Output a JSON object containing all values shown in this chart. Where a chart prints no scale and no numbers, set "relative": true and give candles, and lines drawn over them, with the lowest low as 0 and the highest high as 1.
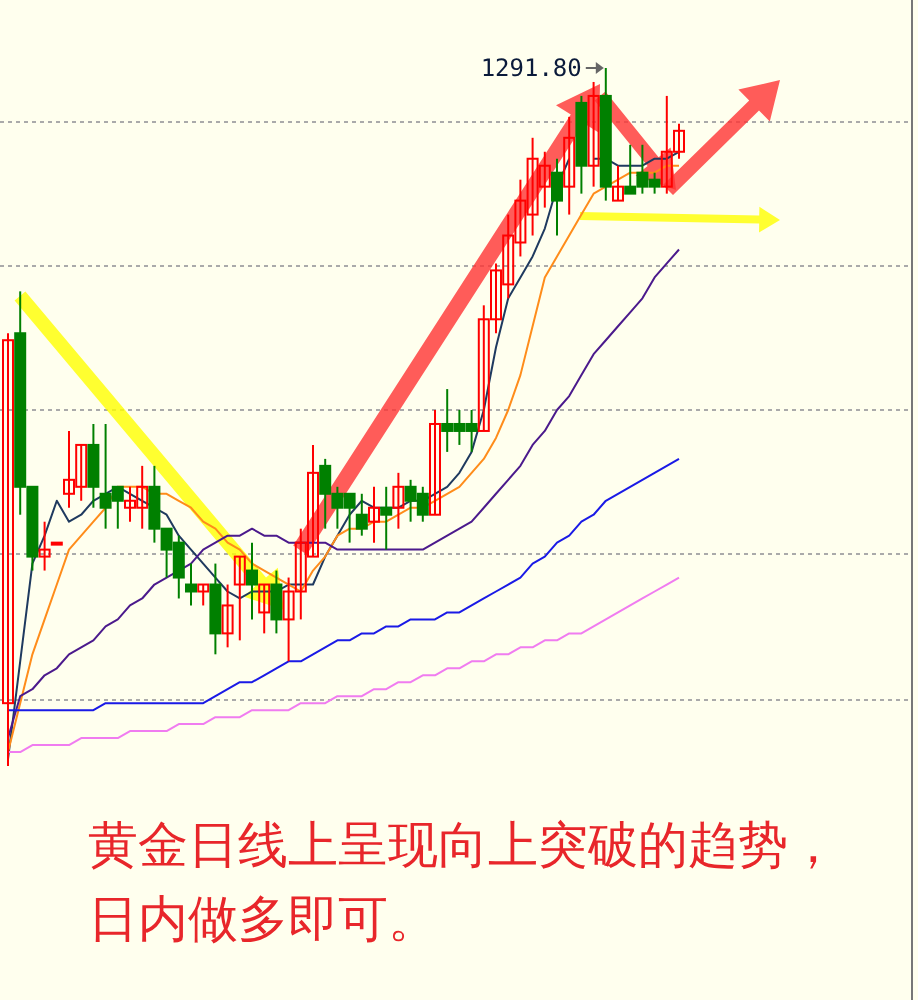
{
  "chart_data": {
    "type": "candlestick",
    "relative": true,
    "grid": "y",
    "categories": [
      null,
      null,
      null,
      null,
      null,
      null,
      null,
      null,
      null,
      null,
      null,
      null,
      null,
      null,
      null,
      null,
      null,
      null,
      null,
      null,
      null,
      null,
      null,
      null,
      null,
      null,
      null,
      null,
      null,
      null,
      null,
      null,
      null,
      null,
      null,
      null,
      null,
      null,
      null,
      null,
      null,
      null,
      null,
      null,
      null,
      null,
      null,
      null,
      null,
      null,
      null,
      null,
      null,
      null,
      null,
      null
    ],
    "ohlc": [
      [
        0.09,
        0.62,
        0,
        0.61
      ],
      [
        0.62,
        0.68,
        0.36,
        0.4
      ],
      [
        0.4,
        0.4,
        0.28,
        0.3
      ],
      [
        0.3,
        0.35,
        0.28,
        0.31
      ],
      [
        0.32,
        0.32,
        0.32,
        0.32
      ],
      [
        0.39,
        0.48,
        0.37,
        0.41
      ],
      [
        0.4,
        0.46,
        0.38,
        0.46
      ],
      [
        0.46,
        0.49,
        0.37,
        0.4
      ],
      [
        0.39,
        0.49,
        0.34,
        0.37
      ],
      [
        0.4,
        0.4,
        0.34,
        0.38
      ],
      [
        0.37,
        0.4,
        0.35,
        0.38
      ],
      [
        0.37,
        0.43,
        0.34,
        0.4
      ],
      [
        0.4,
        0.43,
        0.32,
        0.34
      ],
      [
        0.34,
        0.34,
        0.27,
        0.31
      ],
      [
        0.32,
        0.33,
        0.24,
        0.27
      ],
      [
        0.26,
        0.29,
        0.23,
        0.25
      ],
      [
        0.25,
        0.26,
        0.23,
        0.26
      ],
      [
        0.26,
        0.29,
        0.16,
        0.19
      ],
      [
        0.19,
        0.26,
        0.17,
        0.23
      ],
      [
        0.26,
        0.3,
        0.18,
        0.3
      ],
      [
        0.28,
        0.32,
        0.21,
        0.26
      ],
      [
        0.22,
        0.26,
        0.19,
        0.26
      ],
      [
        0.26,
        0.28,
        0.19,
        0.21
      ],
      [
        0.21,
        0.27,
        0.15,
        0.25
      ],
      [
        0.25,
        0.34,
        0.21,
        0.32
      ],
      [
        0.3,
        0.46,
        0.3,
        0.42
      ],
      [
        0.43,
        0.44,
        0.34,
        0.39
      ],
      [
        0.39,
        0.4,
        0.34,
        0.37
      ],
      [
        0.39,
        0.39,
        0.32,
        0.37
      ],
      [
        0.36,
        0.39,
        0.33,
        0.34
      ],
      [
        0.35,
        0.4,
        0.32,
        0.37
      ],
      [
        0.37,
        0.4,
        0.31,
        0.36
      ],
      [
        0.37,
        0.42,
        0.34,
        0.4
      ],
      [
        0.4,
        0.41,
        0.35,
        0.38
      ],
      [
        0.39,
        0.4,
        0.35,
        0.36
      ],
      [
        0.36,
        0.51,
        0.36,
        0.49
      ],
      [
        0.49,
        0.54,
        0.45,
        0.48
      ],
      [
        0.49,
        0.51,
        0.46,
        0.48
      ],
      [
        0.49,
        0.51,
        0.45,
        0.48
      ],
      [
        0.48,
        0.66,
        0.48,
        0.64
      ],
      [
        0.64,
        0.72,
        0.62,
        0.71
      ],
      [
        0.69,
        0.79,
        0.67,
        0.76
      ],
      [
        0.75,
        0.84,
        0.73,
        0.81
      ],
      [
        0.79,
        0.9,
        0.76,
        0.87
      ],
      [
        0.83,
        0.88,
        0.8,
        0.86
      ],
      [
        0.85,
        0.87,
        0.76,
        0.81
      ],
      [
        0.83,
        0.93,
        0.79,
        0.9
      ],
      [
        0.95,
        0.96,
        0.82,
        0.86
      ],
      [
        0.86,
        0.98,
        0.83,
        0.96
      ],
      [
        0.96,
        1,
        0.81,
        0.83
      ],
      [
        0.81,
        0.86,
        0.81,
        0.83
      ],
      [
        0.83,
        0.89,
        0.82,
        0.82
      ],
      [
        0.85,
        0.89,
        0.82,
        0.83
      ],
      [
        0.84,
        0.85,
        0.82,
        0.83
      ],
      [
        0.83,
        0.96,
        0.82,
        0.88
      ],
      [
        0.88,
        0.92,
        0.87,
        0.91
      ]
    ],
    "series": [
      {
        "type": "line",
        "color": "#1f3a5f",
        "values": [
          0.01,
          0.15,
          0.29,
          0.33,
          0.38,
          0.35,
          0.36,
          0.38,
          0.39,
          0.4,
          0.39,
          0.38,
          0.37,
          0.36,
          0.33,
          0.31,
          0.29,
          0.27,
          0.25,
          0.24,
          0.25,
          0.25,
          0.25,
          0.26,
          0.26,
          0.26,
          0.3,
          0.33,
          0.36,
          0.38,
          0.37,
          0.37,
          0.37,
          0.38,
          0.38,
          0.39,
          0.4,
          0.42,
          0.45,
          0.51,
          0.6,
          0.67,
          0.7,
          0.73,
          0.77,
          0.83,
          0.87,
          null,
          0.87,
          0.87,
          0.86,
          0.86,
          0.86,
          0.87,
          0.87,
          0.88
        ]
      },
      {
        "type": "line",
        "color": "#ff8c1a",
        "values": [
          0.02,
          0.09,
          0.16,
          0.21,
          0.26,
          0.31,
          0.33,
          0.35,
          0.37,
          0.4,
          0.4,
          0.4,
          0.39,
          0.39,
          0.38,
          0.37,
          0.35,
          0.34,
          0.32,
          0.31,
          0.29,
          0.28,
          0.27,
          0.26,
          0.25,
          0.28,
          0.3,
          0.33,
          0.34,
          0.34,
          0.35,
          0.35,
          0.36,
          0.37,
          0.37,
          0.38,
          0.39,
          0.4,
          0.42,
          0.44,
          0.47,
          0.51,
          0.56,
          0.63,
          0.7,
          0.73,
          0.76,
          0.79,
          0.82,
          0.83,
          0.84,
          0.85,
          0.85,
          0.85,
          0.86,
          0.86
        ]
      },
      {
        "type": "line",
        "color": "#4b1a8c",
        "values": [
          0.04,
          0.1,
          0.11,
          0.13,
          0.14,
          0.16,
          0.17,
          0.18,
          0.2,
          0.21,
          0.23,
          0.24,
          0.26,
          0.27,
          0.28,
          0.29,
          0.31,
          0.32,
          0.33,
          0.33,
          0.34,
          0.33,
          0.33,
          0.32,
          0.32,
          0.32,
          0.32,
          0.31,
          0.31,
          0.31,
          0.31,
          0.31,
          0.31,
          0.31,
          0.31,
          0.32,
          0.33,
          0.34,
          0.35,
          0.37,
          0.39,
          0.41,
          0.43,
          0.46,
          0.48,
          0.51,
          0.53,
          0.56,
          0.59,
          0.61,
          0.63,
          0.65,
          0.67,
          0.7,
          0.72,
          0.74
        ]
      },
      {
        "type": "line",
        "color": "#1a1ae6",
        "values": [
          0.08,
          0.08,
          0.08,
          0.08,
          0.08,
          0.08,
          0.08,
          0.08,
          0.09,
          0.09,
          0.09,
          0.09,
          0.09,
          0.09,
          0.09,
          0.09,
          0.09,
          0.1,
          0.11,
          0.12,
          0.12,
          0.13,
          0.14,
          0.15,
          0.15,
          0.16,
          0.17,
          0.18,
          0.18,
          0.19,
          0.19,
          0.2,
          0.2,
          0.21,
          0.21,
          0.21,
          0.22,
          0.22,
          0.23,
          0.24,
          0.25,
          0.26,
          0.27,
          0.29,
          0.3,
          0.32,
          0.33,
          0.35,
          0.36,
          0.38,
          0.39,
          0.4,
          0.41,
          0.42,
          0.43,
          0.44
        ]
      },
      {
        "type": "line",
        "color": "#f07cf0",
        "values": [
          0.02,
          0.02,
          0.03,
          0.03,
          0.03,
          0.03,
          0.04,
          0.04,
          0.04,
          0.04,
          0.05,
          0.05,
          0.05,
          0.05,
          0.06,
          0.06,
          0.06,
          0.07,
          0.07,
          0.07,
          0.08,
          0.08,
          0.08,
          0.08,
          0.09,
          0.09,
          0.09,
          0.1,
          0.1,
          0.1,
          0.11,
          0.11,
          0.12,
          0.12,
          0.13,
          0.13,
          0.14,
          0.14,
          0.15,
          0.15,
          0.16,
          0.16,
          0.17,
          0.17,
          0.18,
          0.18,
          0.19,
          0.19,
          0.2,
          0.21,
          0.22,
          0.23,
          0.24,
          0.25,
          0.26,
          0.27
        ]
      }
    ],
    "annotations": [
      "1291.80",
      "黄金日线上呈现向上突破的趋势，日内做多即可。"
    ]
  }
}
